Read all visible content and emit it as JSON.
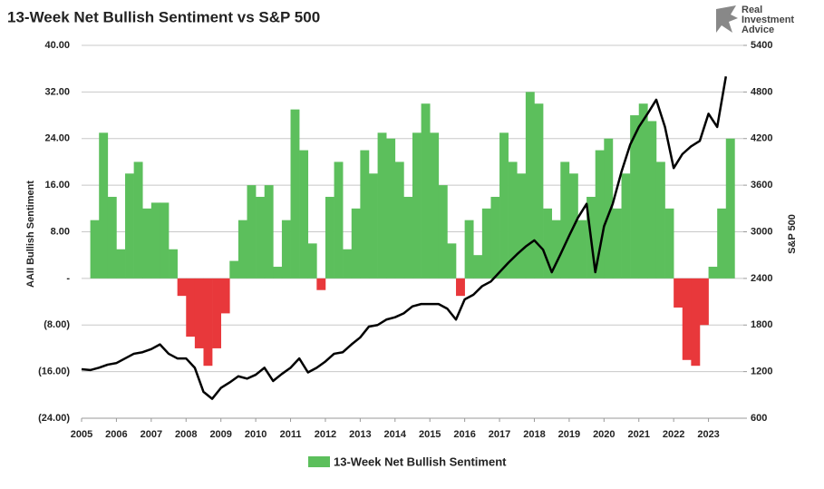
{
  "chart_data": {
    "type": "bar-line",
    "title": "13-Week Net Bullish Sentiment vs S&P 500",
    "y_label": "AAII Bullish Sentiment",
    "y2_label": "S&P 500",
    "grid": true,
    "legend": "bottom",
    "xlim": [
      2005,
      2024
    ],
    "xticks": [
      2005,
      2006,
      2007,
      2008,
      2009,
      2010,
      2011,
      2012,
      2013,
      2014,
      2015,
      2016,
      2017,
      2018,
      2019,
      2020,
      2021,
      2022,
      2023
    ],
    "ylim": [
      -24,
      40
    ],
    "yticks": [
      {
        "value": -24,
        "label": "(24.00)"
      },
      {
        "value": -16,
        "label": "(16.00)"
      },
      {
        "value": -8,
        "label": "(8.00)"
      },
      {
        "value": 0,
        "label": "-"
      },
      {
        "value": 8,
        "label": "8.00"
      },
      {
        "value": 16,
        "label": "16.00"
      },
      {
        "value": 24,
        "label": "24.00"
      },
      {
        "value": 32,
        "label": "32.00"
      },
      {
        "value": 40,
        "label": "40.00"
      }
    ],
    "y2lim": [
      600,
      5400
    ],
    "y2ticks": [
      600,
      1200,
      1800,
      2400,
      3000,
      3600,
      4200,
      4800,
      5400
    ],
    "series": [
      {
        "name": "13-Week Net Bullish Sentiment",
        "type": "bar",
        "color": "#5cbf5c",
        "negative_color": "#e8383b",
        "bar_width": 0.25,
        "x": [
          2005.25,
          2005.5,
          2005.75,
          2006,
          2006.25,
          2006.5,
          2006.75,
          2007,
          2007.25,
          2007.5,
          2007.75,
          2008,
          2008.25,
          2008.5,
          2008.75,
          2009,
          2009.25,
          2009.5,
          2009.75,
          2010,
          2010.25,
          2010.5,
          2010.75,
          2011,
          2011.25,
          2011.5,
          2011.75,
          2012,
          2012.25,
          2012.5,
          2012.75,
          2013,
          2013.25,
          2013.5,
          2013.75,
          2014,
          2014.25,
          2014.5,
          2014.75,
          2015,
          2015.25,
          2015.5,
          2015.75,
          2016,
          2016.25,
          2016.5,
          2016.75,
          2017,
          2017.25,
          2017.5,
          2017.75,
          2018,
          2018.25,
          2018.5,
          2018.75,
          2019,
          2019.25,
          2019.5,
          2019.75,
          2020,
          2020.25,
          2020.5,
          2020.75,
          2021,
          2021.25,
          2021.5,
          2021.75,
          2022,
          2022.25,
          2022.5,
          2022.75,
          2023,
          2023.25,
          2023.5
        ],
        "values": [
          10,
          25,
          14,
          5,
          18,
          20,
          12,
          13,
          13,
          5,
          -3,
          -10,
          -12,
          -15,
          -12,
          -6,
          3,
          10,
          16,
          14,
          16,
          2,
          10,
          29,
          22,
          6,
          -2,
          14,
          20,
          5,
          12,
          22,
          18,
          25,
          24,
          20,
          14,
          25,
          30,
          25,
          16,
          6,
          -3,
          10,
          4,
          12,
          14,
          25,
          20,
          18,
          32,
          30,
          12,
          10,
          20,
          18,
          10,
          14,
          22,
          24,
          12,
          18,
          28,
          30,
          27,
          20,
          12,
          -5,
          -14,
          -15,
          -8,
          2,
          12,
          24
        ]
      },
      {
        "type": "line",
        "axis": "y2",
        "color": "#000000",
        "x": [
          2005,
          2005.25,
          2005.5,
          2005.75,
          2006,
          2006.25,
          2006.5,
          2006.75,
          2007,
          2007.25,
          2007.5,
          2007.75,
          2008,
          2008.25,
          2008.5,
          2008.75,
          2009,
          2009.25,
          2009.5,
          2009.75,
          2010,
          2010.25,
          2010.5,
          2010.75,
          2011,
          2011.25,
          2011.5,
          2011.75,
          2012,
          2012.25,
          2012.5,
          2012.75,
          2013,
          2013.25,
          2013.5,
          2013.75,
          2014,
          2014.25,
          2014.5,
          2014.75,
          2015,
          2015.25,
          2015.5,
          2015.75,
          2016,
          2016.25,
          2016.5,
          2016.75,
          2017,
          2017.25,
          2017.5,
          2017.75,
          2018,
          2018.25,
          2018.5,
          2018.75,
          2019,
          2019.25,
          2019.5,
          2019.75,
          2020,
          2020.25,
          2020.5,
          2020.75,
          2021,
          2021.25,
          2021.5,
          2021.75,
          2022,
          2022.25,
          2022.5,
          2022.75,
          2023,
          2023.25,
          2023.5
        ],
        "values": [
          1230,
          1220,
          1250,
          1290,
          1310,
          1370,
          1430,
          1450,
          1490,
          1550,
          1430,
          1370,
          1370,
          1250,
          940,
          850,
          990,
          1060,
          1140,
          1110,
          1160,
          1250,
          1080,
          1170,
          1250,
          1370,
          1190,
          1250,
          1330,
          1430,
          1450,
          1550,
          1640,
          1780,
          1800,
          1870,
          1900,
          1950,
          2040,
          2070,
          2070,
          2070,
          2010,
          1870,
          2130,
          2190,
          2300,
          2360,
          2480,
          2600,
          2710,
          2810,
          2890,
          2770,
          2480,
          2710,
          2950,
          3180,
          3360,
          2480,
          3070,
          3360,
          3770,
          4120,
          4350,
          4520,
          4700,
          4350,
          3820,
          4000,
          4100,
          4170,
          4520,
          4350,
          5000
        ]
      }
    ]
  },
  "logo": [
    "Real",
    "Investment",
    "Advice"
  ]
}
